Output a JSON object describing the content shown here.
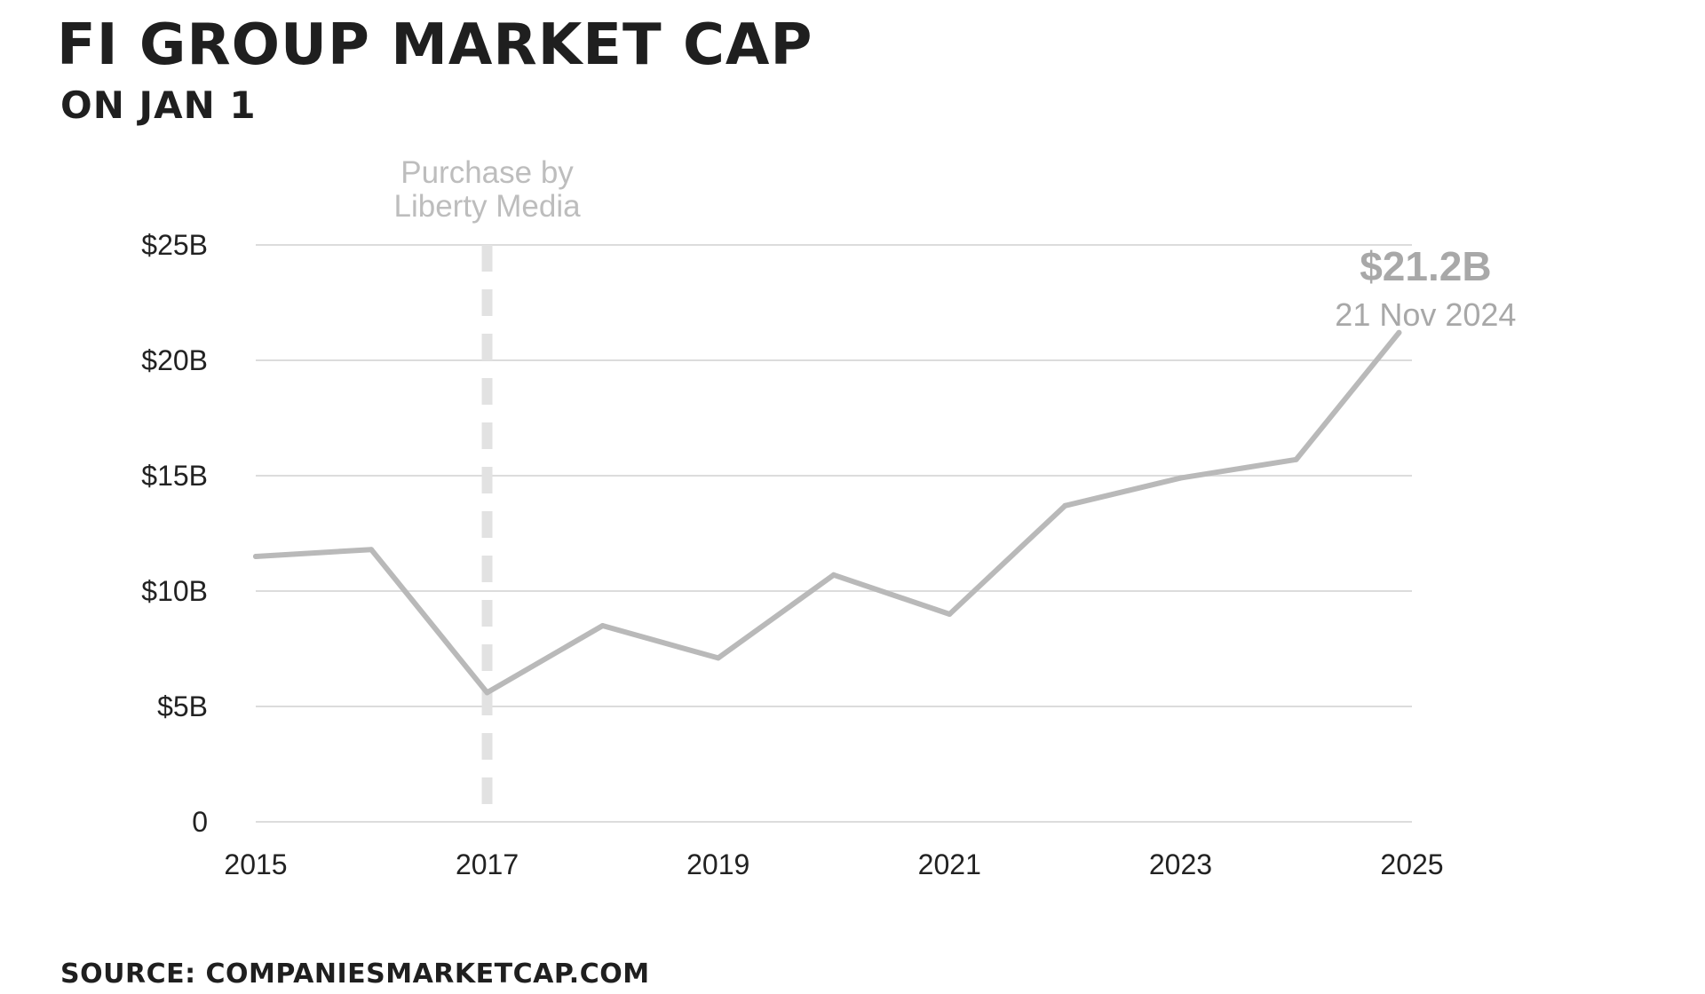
{
  "chart_data": {
    "type": "line",
    "title": "FI GROUP MARKET CAP",
    "subtitle": "ON JAN 1",
    "source": "SOURCE: COMPANIESMARKETCAP.COM",
    "x": [
      "2015-01-01",
      "2016-01-01",
      "2017-01-01",
      "2018-01-01",
      "2019-01-01",
      "2020-01-01",
      "2021-01-01",
      "2022-01-01",
      "2023-01-01",
      "2024-01-01",
      "2024-11-21"
    ],
    "values": [
      11.5,
      11.8,
      5.6,
      8.5,
      7.1,
      10.7,
      9.0,
      13.7,
      14.9,
      15.7,
      21.2
    ],
    "unit": "$B",
    "ylim": [
      0,
      25
    ],
    "yticks": [
      {
        "value": 0,
        "label": "0"
      },
      {
        "value": 5,
        "label": "$5B"
      },
      {
        "value": 10,
        "label": "$10B"
      },
      {
        "value": 15,
        "label": "$15B"
      },
      {
        "value": 20,
        "label": "$20B"
      },
      {
        "value": 25,
        "label": "$25B"
      }
    ],
    "xlim": [
      "2015-01-01",
      "2025-01-01"
    ],
    "xticks": [
      {
        "value": "2015-01-01",
        "label": "2015"
      },
      {
        "value": "2017-01-01",
        "label": "2017"
      },
      {
        "value": "2019-01-01",
        "label": "2019"
      },
      {
        "value": "2021-01-01",
        "label": "2021"
      },
      {
        "value": "2023-01-01",
        "label": "2023"
      },
      {
        "value": "2025-01-01",
        "label": "2025"
      }
    ],
    "grid": "horizontal",
    "annotation": {
      "x": "2017-01-01",
      "lines": [
        "Purchase by",
        "Liberty Media"
      ]
    },
    "last_label": {
      "value": "$21.2B",
      "date": "21 Nov 2024"
    },
    "colors": {
      "line": "#b9b9b9",
      "grid": "#dcdcdc",
      "marker": "#e2e2e2"
    }
  }
}
